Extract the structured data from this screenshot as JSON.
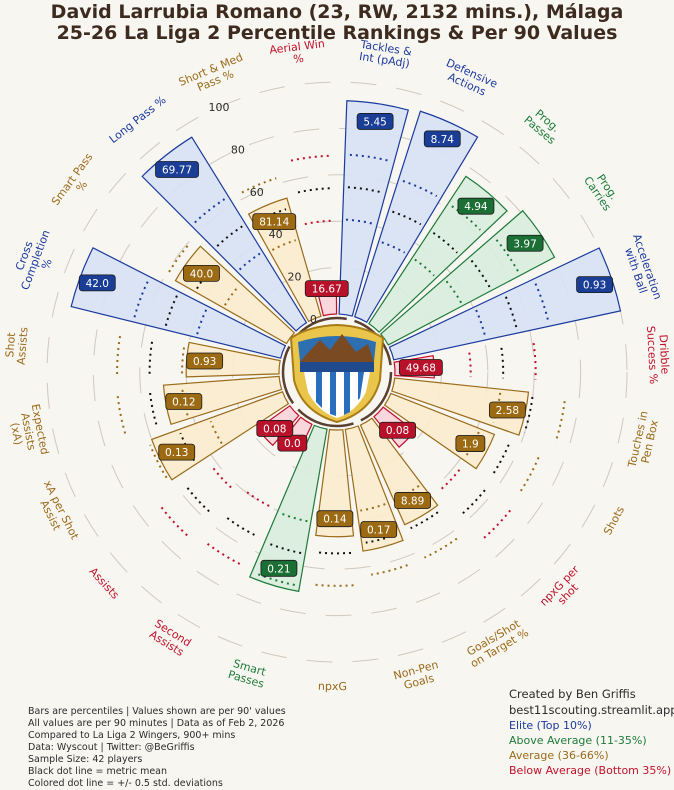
{
  "title": {
    "line1": "David Larrubia Romano (23, RW, 2132 mins.), Málaga",
    "line2": "25-26 La Liga 2 Percentile Rankings & Per 90 Values"
  },
  "notes": [
    "Bars are percentiles | Values shown are per 90' values",
    "All values are per 90 minutes | Data as of Feb 2, 2026",
    "Compared to La Liga 2 Wingers, 900+ mins",
    "Data: Wyscout | Twitter: @BeGriffis",
    "Sample Size: 42 players",
    "Black dot line = metric mean",
    "Colored dot line = +/- 0.5 std. deviations"
  ],
  "credits": {
    "line1": "Created by Ben Griffis",
    "line2": "best11scouting.streamlit.app"
  },
  "legend": [
    {
      "label": "Elite (Top 10%)",
      "color": "#1b3a9e"
    },
    {
      "label": "Above Average (11-35%)",
      "color": "#1e7a3a"
    },
    {
      "label": "Average (36-66%)",
      "color": "#9a6b1a"
    },
    {
      "label": "Below Average (Bottom 35%)",
      "color": "#c0102a"
    }
  ],
  "colors": {
    "elite": "#1b3a9e",
    "above": "#1e7a3a",
    "average": "#9a6b1a",
    "below": "#c0102a"
  },
  "chart_data": {
    "type": "bar",
    "projection": "polar",
    "title": "David Larrubia Romano (23, RW, 2132 mins.), Málaga 25-26 La Liga 2 Percentile Rankings & Per 90 Values",
    "ylim": [
      0,
      100
    ],
    "ticks": [
      "0",
      "20",
      "40",
      "60",
      "80",
      "100"
    ],
    "categories": [
      {
        "label": "Aerial Win %",
        "percentile": 12,
        "value": "16.67",
        "tier": "below"
      },
      {
        "label": "Tackles & Int (pAdj)",
        "percentile": 92,
        "value": "5.45",
        "tier": "elite"
      },
      {
        "label": "Defensive Actions",
        "percentile": 93,
        "value": "8.74",
        "tier": "elite"
      },
      {
        "label": "Prog. Passes",
        "percentile": 76,
        "value": "4.94",
        "tier": "above"
      },
      {
        "label": "Prog. Carries",
        "percentile": 81,
        "value": "3.97",
        "tier": "above"
      },
      {
        "label": "Acceleration with Ball",
        "percentile": 100,
        "value": "0.93",
        "tier": "elite"
      },
      {
        "label": "Dribble Success %",
        "percentile": 17,
        "value": "49.68",
        "tier": "below"
      },
      {
        "label": "Touches in Pen Box",
        "percentile": 58,
        "value": "2.58",
        "tier": "average"
      },
      {
        "label": "Shots",
        "percentile": 48,
        "value": "1.9",
        "tier": "average"
      },
      {
        "label": "npxG per shot",
        "percentile": 17,
        "value": "0.08",
        "tier": "below"
      },
      {
        "label": "Goals/Shot on Target %",
        "percentile": 47,
        "value": "8.89",
        "tier": "average"
      },
      {
        "label": "Non-Pen Goals",
        "percentile": 53,
        "value": "0.17",
        "tier": "average"
      },
      {
        "label": "npxG",
        "percentile": 46,
        "value": "0.14",
        "tier": "average"
      },
      {
        "label": "Smart Passes",
        "percentile": 71,
        "value": "0.21",
        "tier": "above"
      },
      {
        "label": "Second Assists",
        "percentile": 12,
        "value": "0.0",
        "tier": "below"
      },
      {
        "label": "Assists",
        "percentile": 17,
        "value": "0.08",
        "tier": "below"
      },
      {
        "label": "xA per Shot Assist",
        "percentile": 60,
        "value": "0.13",
        "tier": "average"
      },
      {
        "label": "Expected Assists (xA)",
        "percentile": 50,
        "value": "0.12",
        "tier": "average"
      },
      {
        "label": "Shot Assists",
        "percentile": 40,
        "value": "0.93",
        "tier": "average"
      },
      {
        "label": "Cross Completion %",
        "percentile": 93,
        "value": "42.0",
        "tier": "elite"
      },
      {
        "label": "Smart Pass %",
        "percentile": 55,
        "value": "40.0",
        "tier": "average"
      },
      {
        "label": "Long Pass %",
        "percentile": 94,
        "value": "69.77",
        "tier": "elite"
      },
      {
        "label": "Short & Med Pass %",
        "percentile": 53,
        "value": "81.14",
        "tier": "average"
      }
    ]
  }
}
